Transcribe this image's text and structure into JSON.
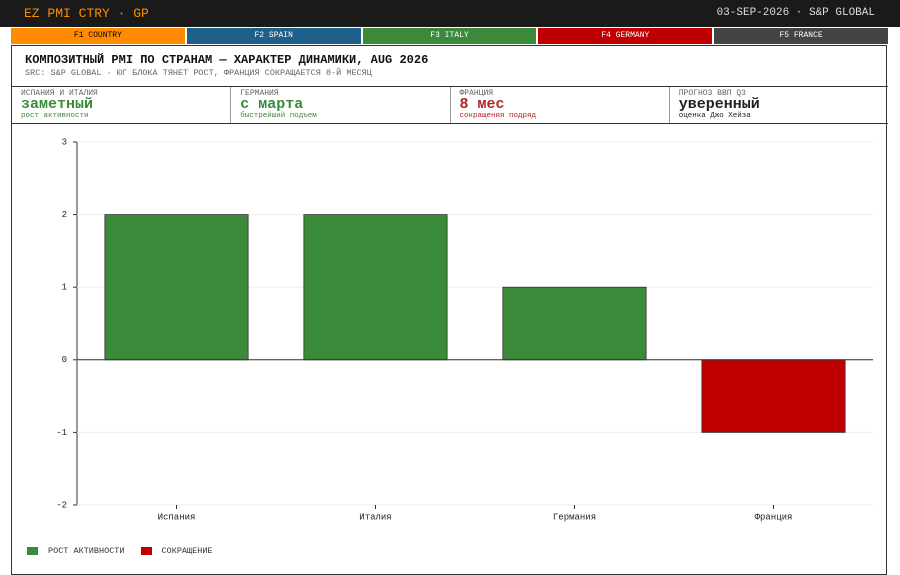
{
  "header": {
    "title": "EZ PMI CTRY · GP",
    "meta": "03-SEP-2026 · S&P GLOBAL"
  },
  "tabs": [
    {
      "label": "F1 COUNTRY",
      "color": "#ff8c00",
      "text_color": "#000000"
    },
    {
      "label": "F2 SPAIN",
      "color": "#1f5f8b",
      "text_color": "#ffffff"
    },
    {
      "label": "F3 ITALY",
      "color": "#3a8a3a",
      "text_color": "#ffffff"
    },
    {
      "label": "F4 GERMANY",
      "color": "#c00000",
      "text_color": "#ffffff"
    },
    {
      "label": "F5 FRANCE",
      "color": "#444444",
      "text_color": "#ffffff"
    }
  ],
  "panel": {
    "title": "КОМПОЗИТНЫЙ PMI ПО СТРАНАМ — ХАРАКТЕР ДИНАМИКИ, AUG 2026",
    "subtitle": "SRC: S&P GLOBAL · ЮГ БЛОКА ТЯНЕТ РОСТ, ФРАНЦИЯ СОКРАЩАЕТСЯ 8-Й МЕСЯЦ"
  },
  "kpis": [
    {
      "label": "ИСПАНИЯ И ИТАЛИЯ",
      "value": "заметный",
      "note": "рост активности",
      "color": "#3a8a3a"
    },
    {
      "label": "ГЕРМАНИЯ",
      "value": "с марта",
      "note": "быстрейший подъем",
      "color": "#3a8a3a"
    },
    {
      "label": "ФРАНЦИЯ",
      "value": "8 мес",
      "note": "сокращения подряд",
      "color": "#b22222"
    },
    {
      "label": "ПРОГНОЗ ВВП Q3",
      "value": "уверенный",
      "note": "оценка Джо Хейза",
      "color": "#222222"
    }
  ],
  "chart_data": {
    "type": "bar",
    "categories": [
      "Испания",
      "Италия",
      "Германия",
      "Франция"
    ],
    "series": [
      {
        "name": "РОСТ АКТИВНОСТИ",
        "color": "#3a8a3a",
        "values": [
          2,
          2,
          1,
          null
        ]
      },
      {
        "name": "СОКРАЩЕНИЕ",
        "color": "#c00000",
        "values": [
          null,
          null,
          null,
          -1
        ]
      }
    ],
    "ylim": [
      -2,
      3
    ],
    "yticks": [
      -2,
      -1,
      0,
      1,
      2,
      3
    ],
    "grid": true
  }
}
